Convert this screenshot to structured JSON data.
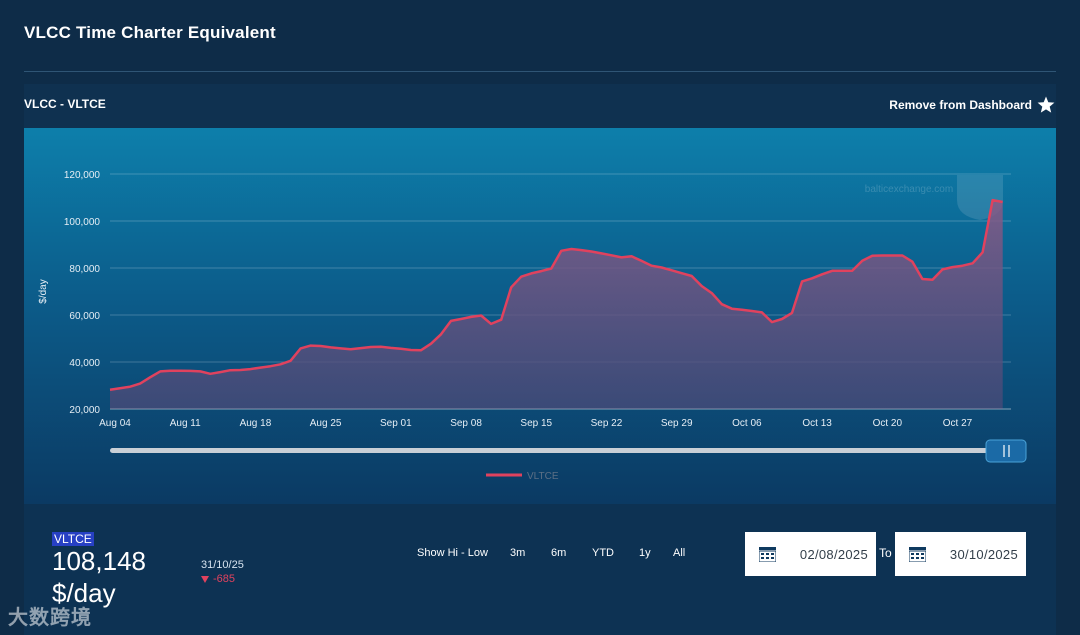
{
  "page": {
    "title": "VLCC Time Charter Equivalent"
  },
  "card": {
    "title": "VLCC - VLTCE",
    "remove_label": "Remove from Dashboard"
  },
  "chart_data": {
    "type": "area",
    "ylabel": "$/day",
    "ylim": [
      20000,
      120000
    ],
    "yticks": [
      20000,
      40000,
      60000,
      80000,
      100000,
      120000
    ],
    "ytick_labels": [
      "20,000",
      "40,000",
      "60,000",
      "80,000",
      "100,000",
      "120,000"
    ],
    "xtick_labels": [
      "Aug 04",
      "Aug 11",
      "Aug 18",
      "Aug 25",
      "Sep 01",
      "Sep 08",
      "Sep 15",
      "Sep 22",
      "Sep 29",
      "Oct 06",
      "Oct 13",
      "Oct 20",
      "Oct 27"
    ],
    "x_start": "Aug 04",
    "watermark": "balticexchange.com",
    "legend": "VLTCE",
    "series": [
      {
        "name": "VLTCE",
        "color": "#e0425e",
        "points": [
          [
            "2025-08-04",
            28200
          ],
          [
            "2025-08-05",
            28800
          ],
          [
            "2025-08-06",
            29500
          ],
          [
            "2025-08-07",
            30800
          ],
          [
            "2025-08-08",
            33500
          ],
          [
            "2025-08-09",
            36000
          ],
          [
            "2025-08-10",
            36300
          ],
          [
            "2025-08-11",
            36300
          ],
          [
            "2025-08-12",
            36200
          ],
          [
            "2025-08-13",
            36000
          ],
          [
            "2025-08-14",
            35000
          ],
          [
            "2025-08-15",
            35700
          ],
          [
            "2025-08-16",
            36500
          ],
          [
            "2025-08-17",
            36600
          ],
          [
            "2025-08-18",
            37000
          ],
          [
            "2025-08-19",
            37600
          ],
          [
            "2025-08-20",
            38200
          ],
          [
            "2025-08-21",
            39000
          ],
          [
            "2025-08-22",
            40500
          ],
          [
            "2025-08-23",
            45800
          ],
          [
            "2025-08-24",
            47000
          ],
          [
            "2025-08-25",
            46800
          ],
          [
            "2025-08-26",
            46200
          ],
          [
            "2025-08-27",
            45800
          ],
          [
            "2025-08-28",
            45400
          ],
          [
            "2025-08-29",
            45900
          ],
          [
            "2025-08-30",
            46400
          ],
          [
            "2025-08-31",
            46500
          ],
          [
            "2025-09-01",
            46000
          ],
          [
            "2025-09-02",
            45600
          ],
          [
            "2025-09-03",
            45100
          ],
          [
            "2025-09-04",
            45000
          ],
          [
            "2025-09-05",
            47800
          ],
          [
            "2025-09-06",
            51800
          ],
          [
            "2025-09-07",
            57500
          ],
          [
            "2025-09-08",
            58300
          ],
          [
            "2025-09-09",
            59200
          ],
          [
            "2025-09-10",
            59800
          ],
          [
            "2025-09-11",
            56200
          ],
          [
            "2025-09-12",
            58000
          ],
          [
            "2025-09-13",
            71800
          ],
          [
            "2025-09-14",
            76300
          ],
          [
            "2025-09-15",
            77700
          ],
          [
            "2025-09-16",
            78700
          ],
          [
            "2025-09-17",
            79800
          ],
          [
            "2025-09-18",
            87300
          ],
          [
            "2025-09-19",
            88100
          ],
          [
            "2025-09-20",
            87600
          ],
          [
            "2025-09-21",
            87000
          ],
          [
            "2025-09-22",
            86200
          ],
          [
            "2025-09-23",
            85400
          ],
          [
            "2025-09-24",
            84500
          ],
          [
            "2025-09-25",
            85000
          ],
          [
            "2025-09-26",
            83000
          ],
          [
            "2025-09-27",
            81000
          ],
          [
            "2025-09-28",
            80200
          ],
          [
            "2025-09-29",
            79000
          ],
          [
            "2025-09-30",
            77800
          ],
          [
            "2025-10-01",
            76600
          ],
          [
            "2025-10-02",
            72300
          ],
          [
            "2025-10-03",
            69300
          ],
          [
            "2025-10-04",
            64600
          ],
          [
            "2025-10-05",
            62700
          ],
          [
            "2025-10-06",
            62200
          ],
          [
            "2025-10-07",
            61700
          ],
          [
            "2025-10-08",
            61100
          ],
          [
            "2025-10-09",
            57000
          ],
          [
            "2025-10-10",
            58300
          ],
          [
            "2025-10-11",
            60900
          ],
          [
            "2025-10-12",
            74300
          ],
          [
            "2025-10-13",
            75600
          ],
          [
            "2025-10-14",
            77300
          ],
          [
            "2025-10-15",
            78800
          ],
          [
            "2025-10-16",
            78800
          ],
          [
            "2025-10-17",
            78800
          ],
          [
            "2025-10-18",
            83100
          ],
          [
            "2025-10-19",
            85200
          ],
          [
            "2025-10-20",
            85300
          ],
          [
            "2025-10-21",
            85300
          ],
          [
            "2025-10-22",
            85300
          ],
          [
            "2025-10-23",
            82700
          ],
          [
            "2025-10-24",
            75300
          ],
          [
            "2025-10-25",
            75000
          ],
          [
            "2025-10-26",
            79400
          ],
          [
            "2025-10-27",
            80400
          ],
          [
            "2025-10-28",
            81000
          ],
          [
            "2025-10-29",
            82000
          ],
          [
            "2025-10-30",
            86700
          ],
          [
            "2025-10-31",
            108900
          ],
          [
            "2025-11-01",
            108100
          ]
        ]
      }
    ]
  },
  "summary": {
    "series": "VLTCE",
    "value": "108,148",
    "unit": "$/day",
    "date": "31/10/25",
    "change": "-685",
    "change_color": "#e0425e"
  },
  "ranges": [
    "Show Hi - Low",
    "3m",
    "6m",
    "YTD",
    "1y",
    "All"
  ],
  "date_range": {
    "from": "02/08/2025",
    "to_label": "To",
    "to": "30/10/2025"
  },
  "watermark_logo": "大数跨境"
}
